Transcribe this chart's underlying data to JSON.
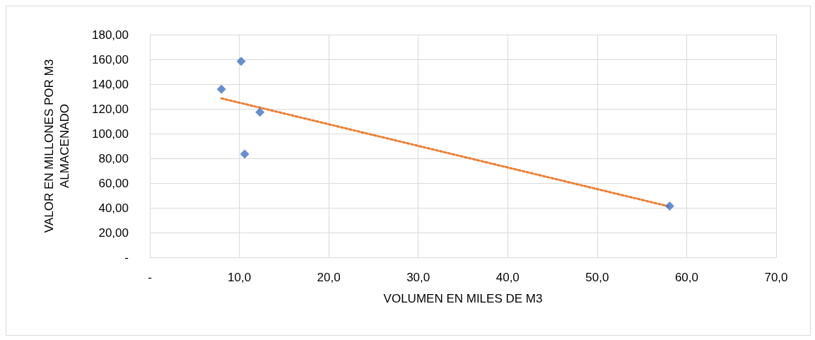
{
  "chart_data": {
    "type": "scatter",
    "xlabel": "VOLUMEN EN MILES DE M3",
    "ylabel": "VALOR EN MILLONES POR M3\nALMACENADO",
    "xlim": [
      0,
      70
    ],
    "xticks": [
      {
        "value": 0,
        "label": "-"
      },
      {
        "value": 10,
        "label": "10,0"
      },
      {
        "value": 20,
        "label": "20,0"
      },
      {
        "value": 30,
        "label": "30,0"
      },
      {
        "value": 40,
        "label": "40,0"
      },
      {
        "value": 50,
        "label": "50,0"
      },
      {
        "value": 60,
        "label": "60,0"
      },
      {
        "value": 70,
        "label": "70,0"
      }
    ],
    "ylim": [
      0,
      180
    ],
    "yticks": [
      {
        "value": 0,
        "label": "-"
      },
      {
        "value": 20,
        "label": "20,00"
      },
      {
        "value": 40,
        "label": "40,00"
      },
      {
        "value": 60,
        "label": "60,00"
      },
      {
        "value": 80,
        "label": "80,00"
      },
      {
        "value": 100,
        "label": "100,00"
      },
      {
        "value": 120,
        "label": "120,00"
      },
      {
        "value": 140,
        "label": "140,00"
      },
      {
        "value": 160,
        "label": "160,00"
      },
      {
        "value": 180,
        "label": "180,00"
      }
    ],
    "grid": true,
    "marker": "diamond",
    "series": [
      {
        "color": "#4472c4",
        "x": [
          8.0,
          10.2,
          12.3,
          10.6,
          58.1
        ],
        "values": [
          135.8,
          158.5,
          117.3,
          83.5,
          41.5
        ]
      },
      {
        "type": "line",
        "color": "#ed7d31",
        "line_style": "dotted",
        "marker": "none",
        "x": [
          8.0,
          58.1
        ],
        "values": [
          128.5,
          41.0
        ]
      }
    ]
  }
}
